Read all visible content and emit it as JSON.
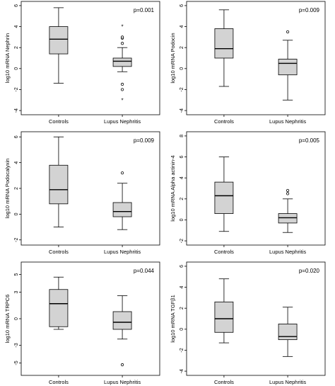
{
  "chart_data": [
    {
      "type": "box",
      "ylabel": "log10 mRNA Nephrin",
      "annotation": "p=0.001",
      "categories": [
        "Controls",
        "Lupus Nephritis"
      ],
      "ylim": [
        -4.4,
        6.4
      ],
      "yticks": [
        -4,
        -2,
        0,
        2,
        4,
        6
      ],
      "boxes": [
        {
          "whisker_low": -1.4,
          "q1": 1.4,
          "median": 2.8,
          "q3": 4.0,
          "whisker_high": 5.8,
          "outliers": [],
          "extremes": []
        },
        {
          "whisker_low": -0.3,
          "q1": 0.2,
          "median": 0.7,
          "q3": 1.0,
          "whisker_high": 2.0,
          "outliers": [
            2.4,
            2.9,
            3.0,
            -1.5,
            -2.0
          ],
          "extremes": [
            4.0,
            -3.0
          ]
        }
      ]
    },
    {
      "type": "box",
      "ylabel": "log10 mRNA Podocin",
      "annotation": "p=0.009",
      "categories": [
        "Controls",
        "Lupus Nephritis"
      ],
      "ylim": [
        -4.4,
        6.4
      ],
      "yticks": [
        -4,
        -2,
        0,
        2,
        4,
        6
      ],
      "boxes": [
        {
          "whisker_low": -1.7,
          "q1": 1.0,
          "median": 1.9,
          "q3": 3.8,
          "whisker_high": 5.6,
          "outliers": [],
          "extremes": []
        },
        {
          "whisker_low": -3.0,
          "q1": -0.6,
          "median": 0.5,
          "q3": 0.9,
          "whisker_high": 2.7,
          "outliers": [
            3.5
          ],
          "extremes": []
        }
      ]
    },
    {
      "type": "box",
      "ylabel": "log10 mRNA Podocalyxin",
      "annotation": "p=0.009",
      "categories": [
        "Controls",
        "Lupus Nephritis"
      ],
      "ylim": [
        -2.4,
        6.4
      ],
      "yticks": [
        -2,
        0,
        2,
        4,
        6
      ],
      "boxes": [
        {
          "whisker_low": -1.0,
          "q1": 0.8,
          "median": 1.9,
          "q3": 3.8,
          "whisker_high": 6.0,
          "outliers": [],
          "extremes": []
        },
        {
          "whisker_low": -1.2,
          "q1": -0.2,
          "median": 0.2,
          "q3": 0.9,
          "whisker_high": 2.4,
          "outliers": [
            3.2
          ],
          "extremes": []
        }
      ]
    },
    {
      "type": "box",
      "ylabel": "log10 mRNA Alpha actinin-4",
      "annotation": "p=0.005",
      "categories": [
        "Controls",
        "Lupus Nephritis"
      ],
      "ylim": [
        -2.4,
        8.4
      ],
      "yticks": [
        -2,
        0,
        2,
        4,
        6,
        8
      ],
      "boxes": [
        {
          "whisker_low": -1.1,
          "q1": 0.6,
          "median": 2.3,
          "q3": 3.6,
          "whisker_high": 6.0,
          "outliers": [],
          "extremes": []
        },
        {
          "whisker_low": -1.2,
          "q1": -0.3,
          "median": 0.2,
          "q3": 0.6,
          "whisker_high": 2.0,
          "outliers": [
            2.5,
            2.8
          ],
          "extremes": []
        }
      ]
    },
    {
      "type": "box",
      "ylabel": "log10 mRNA TRPC6",
      "annotation": "p=0.044",
      "categories": [
        "Controls",
        "Lupus Nephritis"
      ],
      "ylim": [
        -6.4,
        6.4
      ],
      "yticks": [
        -5,
        -3,
        0,
        3,
        5
      ],
      "boxes": [
        {
          "whisker_low": -1.2,
          "q1": -0.9,
          "median": 1.7,
          "q3": 3.3,
          "whisker_high": 4.7,
          "outliers": [],
          "extremes": []
        },
        {
          "whisker_low": -2.3,
          "q1": -1.2,
          "median": -0.4,
          "q3": 0.8,
          "whisker_high": 2.6,
          "outliers": [
            -5.2
          ],
          "extremes": []
        }
      ]
    },
    {
      "type": "box",
      "ylabel": "log10 mRNA TGFβ1",
      "annotation": "p=0.020",
      "categories": [
        "Controls",
        "Lupus Nephritis"
      ],
      "ylim": [
        -4.4,
        6.4
      ],
      "yticks": [
        -4,
        -2,
        0,
        2,
        4,
        6
      ],
      "boxes": [
        {
          "whisker_low": -1.3,
          "q1": -0.3,
          "median": 1.0,
          "q3": 2.6,
          "whisker_high": 4.8,
          "outliers": [],
          "extremes": []
        },
        {
          "whisker_low": -2.6,
          "q1": -1.0,
          "median": -0.7,
          "q3": 0.5,
          "whisker_high": 2.1,
          "outliers": [],
          "extremes": []
        }
      ]
    }
  ]
}
